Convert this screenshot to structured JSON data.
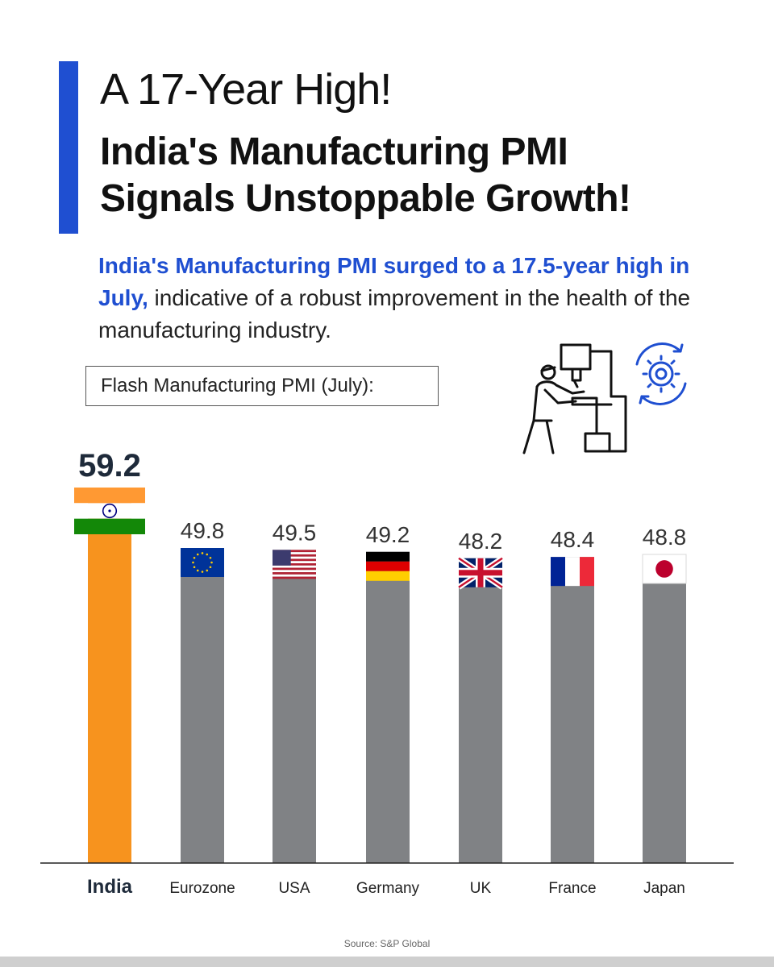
{
  "header": {
    "title_line1": "A 17-Year High!",
    "title_line2": "India's Manufacturing PMI",
    "title_line3": "Signals Unstoppable Growth!"
  },
  "intro": {
    "highlight": "India's Manufacturing PMI surged to a 17.5-year high in July,",
    "rest": " indicative of a robust improvement in the health of the manufacturing industry."
  },
  "chart_label": "Flash Manufacturing PMI (July):",
  "source": "Source: S&P Global",
  "colors": {
    "accent": "#1f4fd1",
    "india_bar": "#f7931e",
    "other_bar": "#808285"
  },
  "chart_data": {
    "type": "bar",
    "title": "Flash Manufacturing PMI (July):",
    "categories": [
      "India",
      "Eurozone",
      "USA",
      "Germany",
      "UK",
      "France",
      "Japan"
    ],
    "values": [
      59.2,
      49.8,
      49.5,
      49.2,
      48.2,
      48.4,
      48.8
    ],
    "value_labels": [
      "59.2",
      "49.8",
      "49.5",
      "49.2",
      "48.2",
      "48.4",
      "48.8"
    ],
    "flags": [
      "india-flag",
      "eu-flag",
      "usa-flag",
      "germany-flag",
      "uk-flag",
      "france-flag",
      "japan-flag"
    ],
    "highlight_index": 0,
    "xlabel": "",
    "ylabel": "",
    "ylim": [
      0,
      60
    ],
    "grid": false
  }
}
